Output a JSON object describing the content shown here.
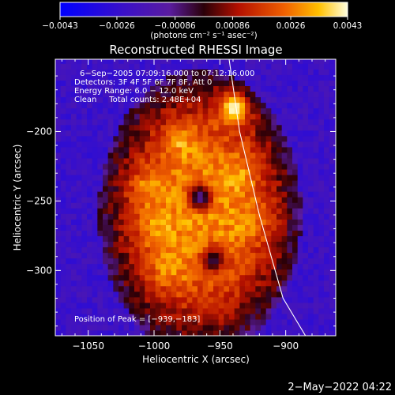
{
  "chart_data": {
    "type": "heatmap",
    "title": "Reconstructed RHESSI Image",
    "xlabel": "Heliocentric X (arcsec)",
    "ylabel": "Heliocentric Y (arcsec)",
    "xlim": [
      -1075,
      -862
    ],
    "ylim": [
      -347,
      -148
    ],
    "x_ticks": [
      -1050,
      -1000,
      -950,
      -900
    ],
    "x_tick_labels": [
      "−1050",
      "−1000",
      "−950",
      "−900"
    ],
    "y_ticks": [
      -200,
      -250,
      -300
    ],
    "y_tick_labels": [
      "−200",
      "−250",
      "−300"
    ],
    "colorbar": {
      "ticks": [
        -0.0043,
        -0.0026,
        -0.00086,
        0.00086,
        0.0026,
        0.0043
      ],
      "tick_labels": [
        "−0.0043",
        "−0.0026",
        "−0.00086",
        "0.00086",
        "0.0026",
        "0.0043"
      ],
      "units": "(photons cm⁻² s⁻¹ asec⁻²)",
      "range": [
        -0.0043,
        0.0043
      ]
    },
    "annotations": [
      "6−Sep−2005 07:09:16.000 to 07:12:16.000",
      "Detectors: 3F 4F 5F 6F 7F 8F, Att 0",
      "Energy Range: 6.0 − 12.0 keV",
      "Clean     Total counts: 2.48E+04"
    ],
    "peak_label": "Position of Peak = [−939,−183]",
    "peak": [
      -939,
      -183
    ],
    "peak_value": 0.0043,
    "limb_arc": {
      "description": "solar limb",
      "points": [
        [
          -943,
          -148
        ],
        [
          -935,
          -200
        ],
        [
          -920,
          -260
        ],
        [
          -902,
          -320
        ],
        [
          -885,
          -347
        ]
      ]
    },
    "sources": [
      {
        "x": -939,
        "y": -183,
        "value": 0.0043
      },
      {
        "x": -980,
        "y": -205,
        "value": 0.0032
      },
      {
        "x": -1005,
        "y": -240,
        "value": 0.003
      },
      {
        "x": -935,
        "y": -230,
        "value": 0.0028
      },
      {
        "x": -925,
        "y": -265,
        "value": 0.0026
      },
      {
        "x": -990,
        "y": -300,
        "value": 0.0027
      },
      {
        "x": -1000,
        "y": -270,
        "value": 0.0024
      }
    ],
    "holes": [
      {
        "x": -965,
        "y": -247,
        "value": -0.001
      },
      {
        "x": -955,
        "y": -292,
        "value": -0.0005
      }
    ]
  },
  "timestamp": "2−May−2022 04:22"
}
